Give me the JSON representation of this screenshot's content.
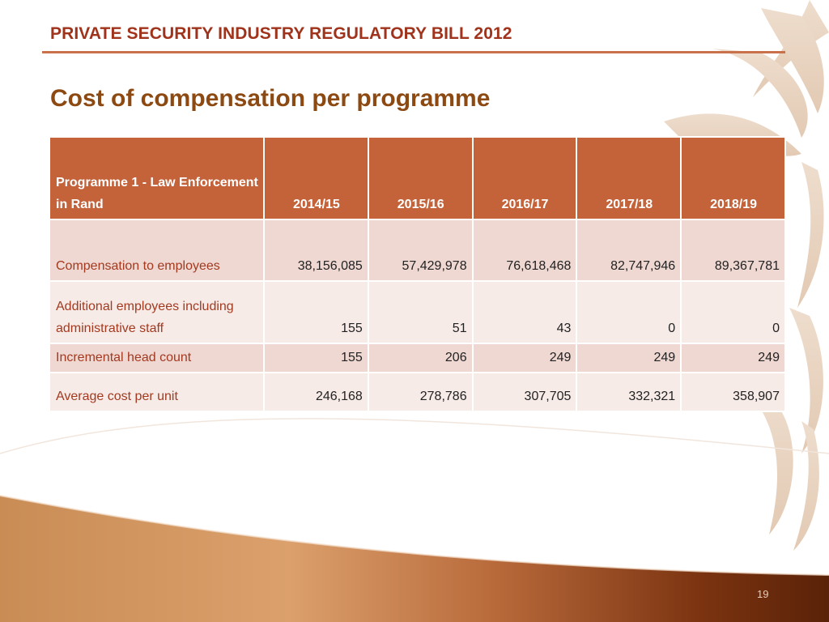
{
  "slide": {
    "header": "PRIVATE SECURITY INDUSTRY REGULATORY BILL 2012",
    "title": "Cost of compensation per programme",
    "page_number": "19"
  },
  "table": {
    "headers": [
      "Programme 1 - Law Enforcement in Rand",
      "2014/15",
      "2015/16",
      "2016/17",
      "2017/18",
      "2018/19"
    ],
    "rows": [
      {
        "label": "Compensation to employees",
        "values": [
          "38,156,085",
          "57,429,978",
          "76,618,468",
          "82,747,946",
          "89,367,781"
        ]
      },
      {
        "label": "Additional employees including administrative staff",
        "values": [
          "155",
          "51",
          "43",
          "0",
          "0"
        ]
      },
      {
        "label": "Incremental head count",
        "values": [
          "155",
          "206",
          "249",
          "249",
          "249"
        ]
      },
      {
        "label": "Average cost per unit",
        "values": [
          "246,168",
          "278,786",
          "307,705",
          "332,321",
          "358,907"
        ]
      }
    ]
  },
  "colors": {
    "header_fill": "#c4623a",
    "row_odd": "#efd7d2",
    "row_even": "#f7ebe8",
    "title": "#8c4a12",
    "header_text": "#a0331c"
  }
}
